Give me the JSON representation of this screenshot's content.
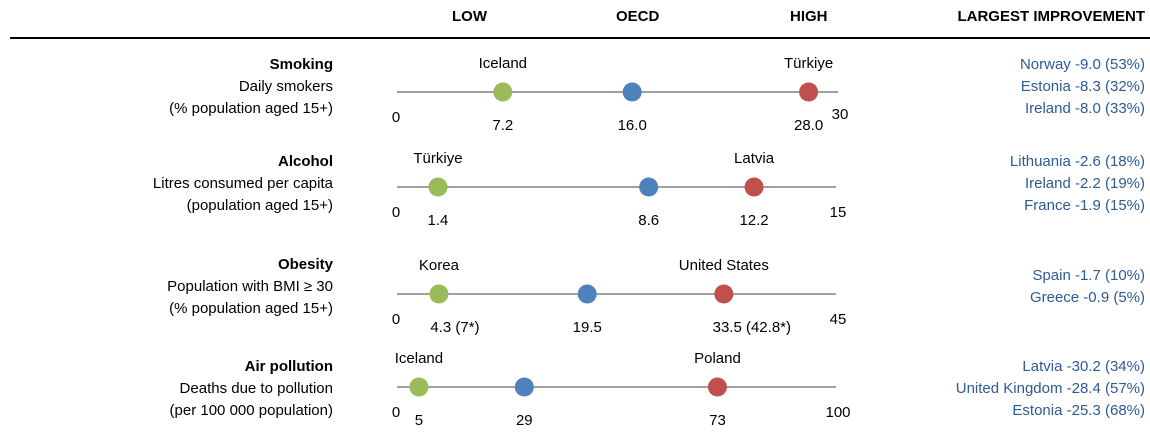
{
  "headers": {
    "low": "LOW",
    "oecd": "OECD",
    "high": "HIGH",
    "improvement": "LARGEST IMPROVEMENT"
  },
  "colors": {
    "low": "#9bbb59",
    "oecd": "#4f81bd",
    "high": "#c0504d",
    "axis": "#808080",
    "improvement_text": "#2e5a96"
  },
  "rows": [
    {
      "name": "Smoking",
      "line1": "Daily smokers",
      "line2": "(% population aged 15+)",
      "improvements": [
        "Norway -9.0 (53%)",
        "Estonia -8.3 (32%)",
        "Ireland -8.0 (33%)"
      ]
    },
    {
      "name": "Alcohol",
      "line1": "Litres consumed per capita",
      "line2": "(population aged 15+)",
      "improvements": [
        "Lithuania -2.6 (18%)",
        "Ireland -2.2 (19%)",
        "France -1.9 (15%)"
      ]
    },
    {
      "name": "Obesity",
      "line1": "Population with BMI ≥ 30",
      "line2": "(% population aged 15+)",
      "improvements": [
        "Spain -1.7 (10%)",
        "Greece -0.9 (5%)"
      ]
    },
    {
      "name": "Air pollution",
      "line1": "Deaths due to pollution",
      "line2": "(per 100 000 population)",
      "improvements": [
        "Latvia -30.2 (34%)",
        "United Kingdom -28.4 (57%)",
        "Estonia -25.3 (68%)"
      ]
    }
  ],
  "chart_data": {
    "type": "scatter",
    "rows": [
      {
        "axis_min": 0,
        "axis_max": 30,
        "min_label": "0",
        "max_label": "30",
        "low": {
          "value": 7.2,
          "label": "7.2",
          "country": "Iceland"
        },
        "oecd": {
          "value": 16.0,
          "label": "16.0"
        },
        "high": {
          "value": 28.0,
          "label": "28.0",
          "country": "Türkiye"
        }
      },
      {
        "axis_min": 0,
        "axis_max": 15,
        "min_label": "0",
        "max_label": "15",
        "low": {
          "value": 1.4,
          "label": "1.4",
          "country": "Türkiye"
        },
        "oecd": {
          "value": 8.6,
          "label": "8.6"
        },
        "high": {
          "value": 12.2,
          "label": "12.2",
          "country": "Latvia"
        }
      },
      {
        "axis_min": 0,
        "axis_max": 45,
        "min_label": "0",
        "max_label": "45",
        "low": {
          "value": 4.3,
          "label": "4.3 (7*)",
          "country": "Korea"
        },
        "oecd": {
          "value": 19.5,
          "label": "19.5"
        },
        "high": {
          "value": 33.5,
          "label": "33.5 (42.8*)",
          "country": "United States"
        }
      },
      {
        "axis_min": 0,
        "axis_max": 100,
        "min_label": "0",
        "max_label": "100",
        "low": {
          "value": 5,
          "label": "5",
          "country": "Iceland"
        },
        "oecd": {
          "value": 29,
          "label": "29"
        },
        "high": {
          "value": 73,
          "label": "73",
          "country": "Poland"
        }
      }
    ]
  }
}
